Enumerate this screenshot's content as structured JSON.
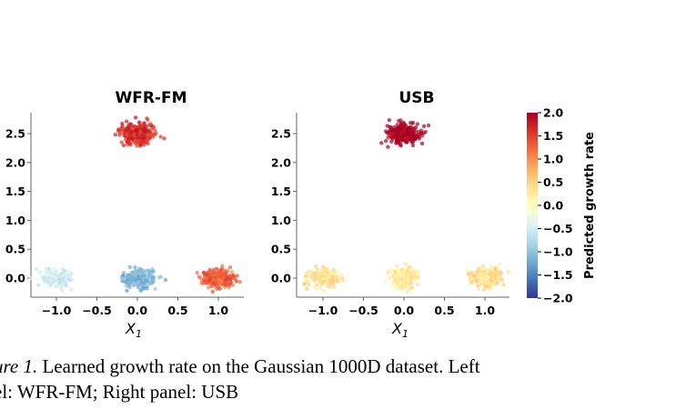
{
  "chart_data": [
    {
      "type": "scatter",
      "title": "WFR-FM",
      "xlabel": "X",
      "xlabel_sub": "1",
      "ylabel": "",
      "xlim": [
        -1.3,
        1.3
      ],
      "ylim": [
        -0.35,
        2.85
      ],
      "xticks": [
        -1.0,
        -0.5,
        0.0,
        0.5,
        1.0
      ],
      "xtick_labels": [
        "−1.0",
        "−0.5",
        "0.0",
        "0.5",
        "1.0"
      ],
      "yticks": [
        0.0,
        0.5,
        1.0,
        1.5,
        2.0,
        2.5
      ],
      "ytick_labels": [
        "0.0",
        "0.5",
        "1.0",
        "1.5",
        "2.0",
        "2.5"
      ],
      "clusters": [
        {
          "center": [
            0.0,
            2.5
          ],
          "predicted_growth_rate": 1.6,
          "n_points": 320
        },
        {
          "center": [
            -1.0,
            0.0
          ],
          "predicted_growth_rate": -0.5,
          "n_points": 160
        },
        {
          "center": [
            0.0,
            0.0
          ],
          "predicted_growth_rate": -1.1,
          "n_points": 220
        },
        {
          "center": [
            1.0,
            0.0
          ],
          "predicted_growth_rate": 1.3,
          "n_points": 220
        }
      ]
    },
    {
      "type": "scatter",
      "title": "USB",
      "xlabel": "X",
      "xlabel_sub": "1",
      "ylabel": "",
      "xlim": [
        -1.3,
        1.3
      ],
      "ylim": [
        -0.35,
        2.85
      ],
      "xticks": [
        -1.0,
        -0.5,
        0.0,
        0.5,
        1.0
      ],
      "xtick_labels": [
        "−1.0",
        "−0.5",
        "0.0",
        "0.5",
        "1.0"
      ],
      "yticks": [
        0.0,
        0.5,
        1.0,
        1.5,
        2.0,
        2.5
      ],
      "ytick_labels": [
        "0.0",
        "0.5",
        "1.0",
        "1.5",
        "2.0",
        "2.5"
      ],
      "clusters": [
        {
          "center": [
            0.0,
            2.5
          ],
          "predicted_growth_rate": 2.0,
          "n_points": 320
        },
        {
          "center": [
            -1.0,
            0.0
          ],
          "predicted_growth_rate": 0.35,
          "n_points": 160
        },
        {
          "center": [
            0.0,
            0.0
          ],
          "predicted_growth_rate": 0.25,
          "n_points": 220
        },
        {
          "center": [
            1.0,
            0.0
          ],
          "predicted_growth_rate": 0.35,
          "n_points": 220
        }
      ]
    }
  ],
  "colorbar": {
    "label": "Predicted growth rate",
    "colormap": "RdYlBu_r",
    "range": [
      -2.0,
      2.0
    ],
    "ticks": [
      2.0,
      1.5,
      1.0,
      0.5,
      0.0,
      -0.5,
      -1.0,
      -1.5,
      -2.0
    ],
    "tick_labels": [
      "2.0",
      "1.5",
      "1.0",
      "0.5",
      "0.0",
      "−0.5",
      "−1.0",
      "−1.5",
      "−2.0"
    ],
    "colors": [
      "#313695",
      "#4575b4",
      "#74add1",
      "#abd9e9",
      "#e0f3f8",
      "#ffffbf",
      "#fee090",
      "#fdae61",
      "#f46d43",
      "#d73027",
      "#a50026"
    ]
  },
  "caption": {
    "lead": "ure 1.",
    "line1": " Learned growth rate on the Gaussian 1000D dataset. Left",
    "line2": "el: WFR-FM; Right panel: USB"
  }
}
